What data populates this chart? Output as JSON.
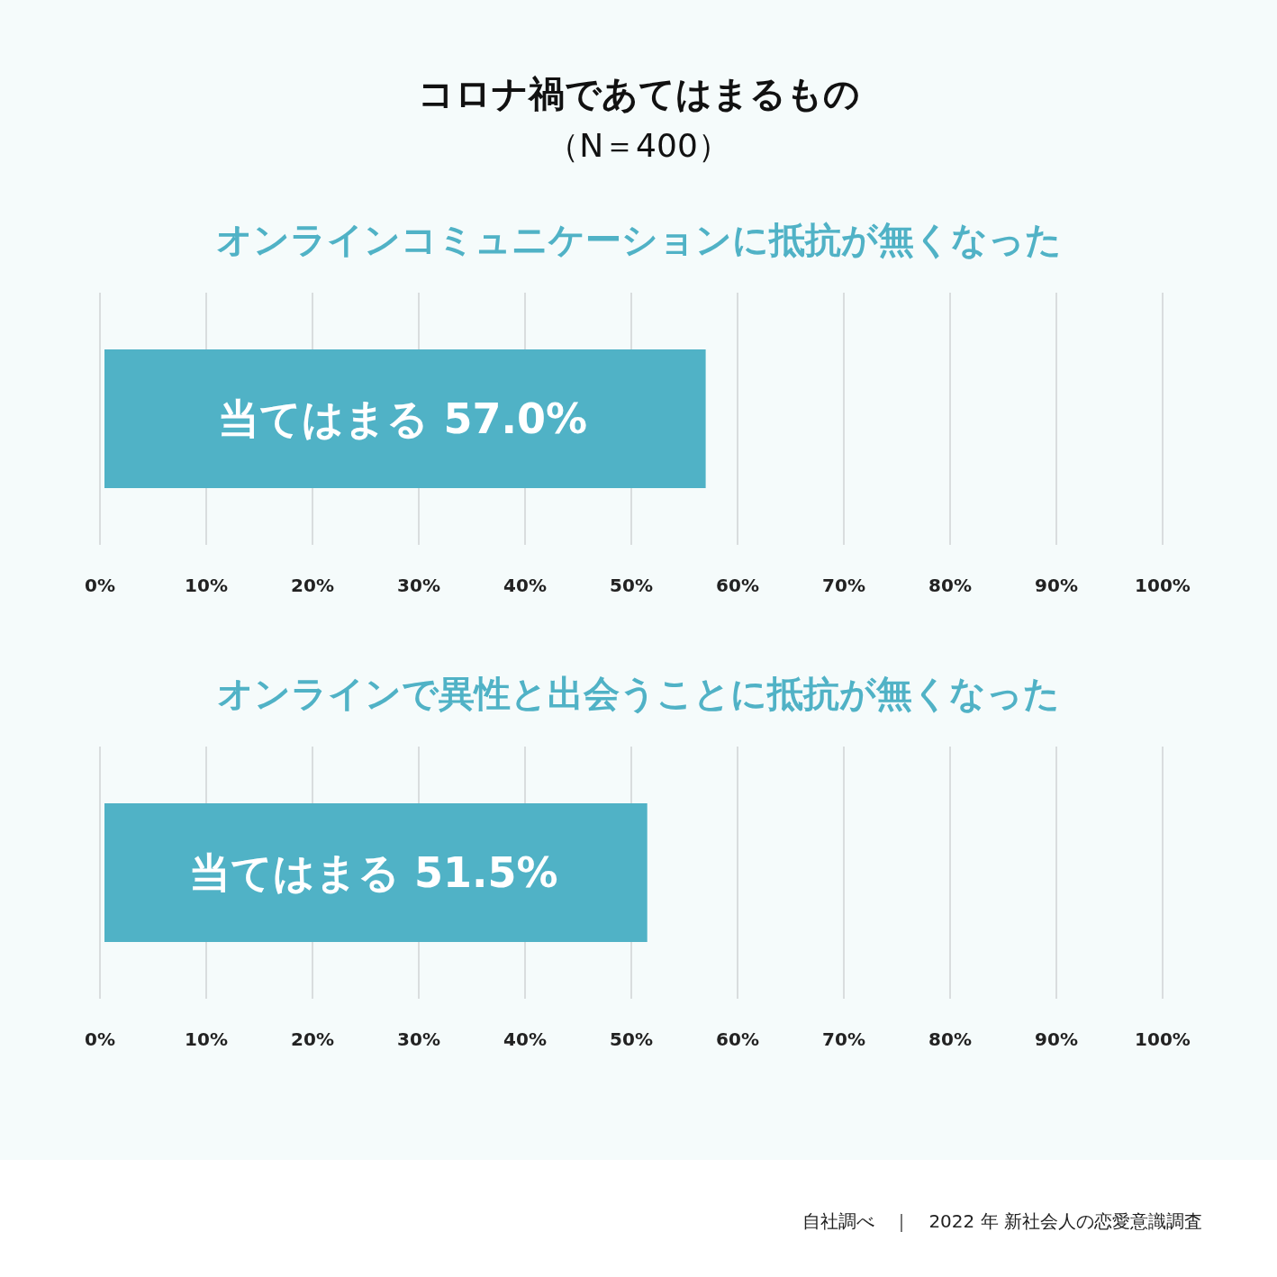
{
  "chart_data": [
    {
      "type": "other",
      "title": "コロナ禍であてはまるもの",
      "subtitle": "（N＝400）",
      "annotations": [
        "自社調べ　｜　2022 年 新社会人の恋愛意識調査"
      ]
    },
    {
      "type": "bar",
      "orientation": "horizontal",
      "title": "オンラインコミュニケーションに抵抗が無くなった",
      "categories": [
        "当てはまる"
      ],
      "values": [
        57.0
      ],
      "value_labels": [
        "57.0%"
      ],
      "color": "#50b2c6",
      "grid": "x",
      "xlim": [
        0,
        100
      ],
      "xticks": [
        {
          "value": 0,
          "label": "0%"
        },
        {
          "value": 10,
          "label": "10%"
        },
        {
          "value": 20,
          "label": "20%"
        },
        {
          "value": 30,
          "label": "30%"
        },
        {
          "value": 40,
          "label": "40%"
        },
        {
          "value": 50,
          "label": "50%"
        },
        {
          "value": 60,
          "label": "60%"
        },
        {
          "value": 70,
          "label": "70%"
        },
        {
          "value": 80,
          "label": "80%"
        },
        {
          "value": 90,
          "label": "90%"
        },
        {
          "value": 100,
          "label": "100%"
        }
      ]
    },
    {
      "type": "bar",
      "orientation": "horizontal",
      "title": "オンラインで異性と出会うことに抵抗が無くなった",
      "categories": [
        "当てはまる"
      ],
      "values": [
        51.5
      ],
      "value_labels": [
        "51.5%"
      ],
      "color": "#50b2c6",
      "grid": "x",
      "xlim": [
        0,
        100
      ],
      "xticks": [
        {
          "value": 0,
          "label": "0%"
        },
        {
          "value": 10,
          "label": "10%"
        },
        {
          "value": 20,
          "label": "20%"
        },
        {
          "value": 30,
          "label": "30%"
        },
        {
          "value": 40,
          "label": "40%"
        },
        {
          "value": 50,
          "label": "50%"
        },
        {
          "value": 60,
          "label": "60%"
        },
        {
          "value": 70,
          "label": "70%"
        },
        {
          "value": 80,
          "label": "80%"
        },
        {
          "value": 90,
          "label": "90%"
        },
        {
          "value": 100,
          "label": "100%"
        }
      ]
    }
  ]
}
